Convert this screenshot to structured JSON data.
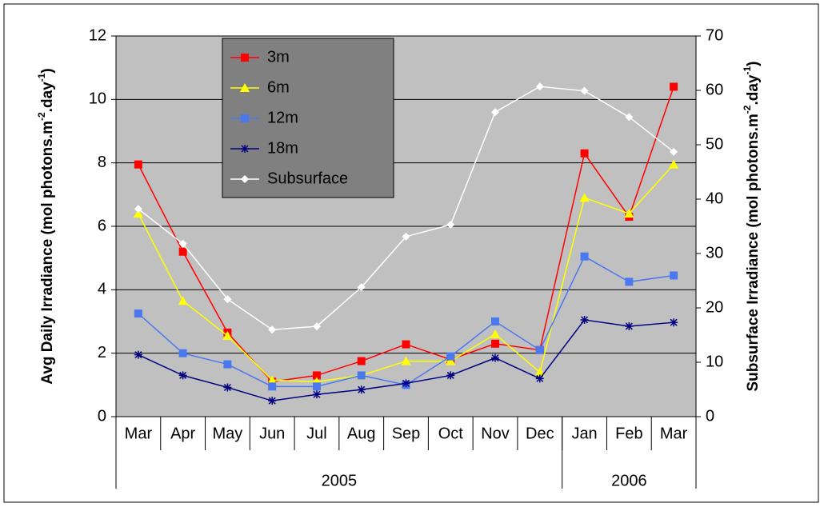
{
  "chart_data": {
    "type": "line",
    "categories": [
      "Mar",
      "Apr",
      "May",
      "Jun",
      "Jul",
      "Aug",
      "Sep",
      "Oct",
      "Nov",
      "Dec",
      "Jan",
      "Feb",
      "Mar"
    ],
    "groups": [
      {
        "label": "2005",
        "count": 10
      },
      {
        "label": "2006",
        "count": 3
      }
    ],
    "y_label": [
      "Avg Daily Irradiance (mol photons.m",
      "-2",
      ".day",
      "-1",
      ")"
    ],
    "y2_label": [
      "Subsurface Irradiance (mol photons.m",
      "-2",
      ".day",
      "-1",
      ")"
    ],
    "ylim": [
      0,
      12
    ],
    "yticks": [
      0,
      2,
      4,
      6,
      8,
      10,
      12
    ],
    "y2lim": [
      0,
      70
    ],
    "y2ticks": [
      0,
      10,
      20,
      30,
      40,
      50,
      60,
      70
    ],
    "grid": true,
    "legend": "top-left",
    "series": [
      {
        "name": "3m",
        "color": "#ff0000",
        "marker": "square",
        "values": [
          7.95,
          5.2,
          2.65,
          1.1,
          1.3,
          1.75,
          2.28,
          1.8,
          2.3,
          2.1,
          8.3,
          6.3,
          10.4
        ]
      },
      {
        "name": "6m",
        "color": "#ffff00",
        "marker": "triangle",
        "values": [
          6.4,
          3.65,
          2.55,
          1.15,
          1.1,
          1.3,
          1.75,
          1.75,
          2.6,
          1.4,
          6.9,
          6.4,
          7.95
        ]
      },
      {
        "name": "12m",
        "color": "#4a78ee",
        "marker": "square",
        "values": [
          3.25,
          2.0,
          1.65,
          0.95,
          0.95,
          1.3,
          1.0,
          1.9,
          3.0,
          2.1,
          5.05,
          4.25,
          4.45
        ]
      },
      {
        "name": "18m",
        "color": "#000080",
        "marker": "star",
        "values": [
          1.95,
          1.3,
          0.92,
          0.5,
          0.7,
          0.85,
          1.05,
          1.3,
          1.85,
          1.2,
          3.05,
          2.85,
          2.97
        ]
      },
      {
        "name": "Subsurface",
        "color": "#ffffff",
        "marker": "diamond",
        "axis": "y2",
        "values": [
          38.2,
          31.8,
          21.6,
          16.0,
          16.6,
          23.8,
          33.1,
          35.3,
          56.0,
          60.7,
          59.9,
          55.1,
          48.7
        ]
      }
    ]
  }
}
